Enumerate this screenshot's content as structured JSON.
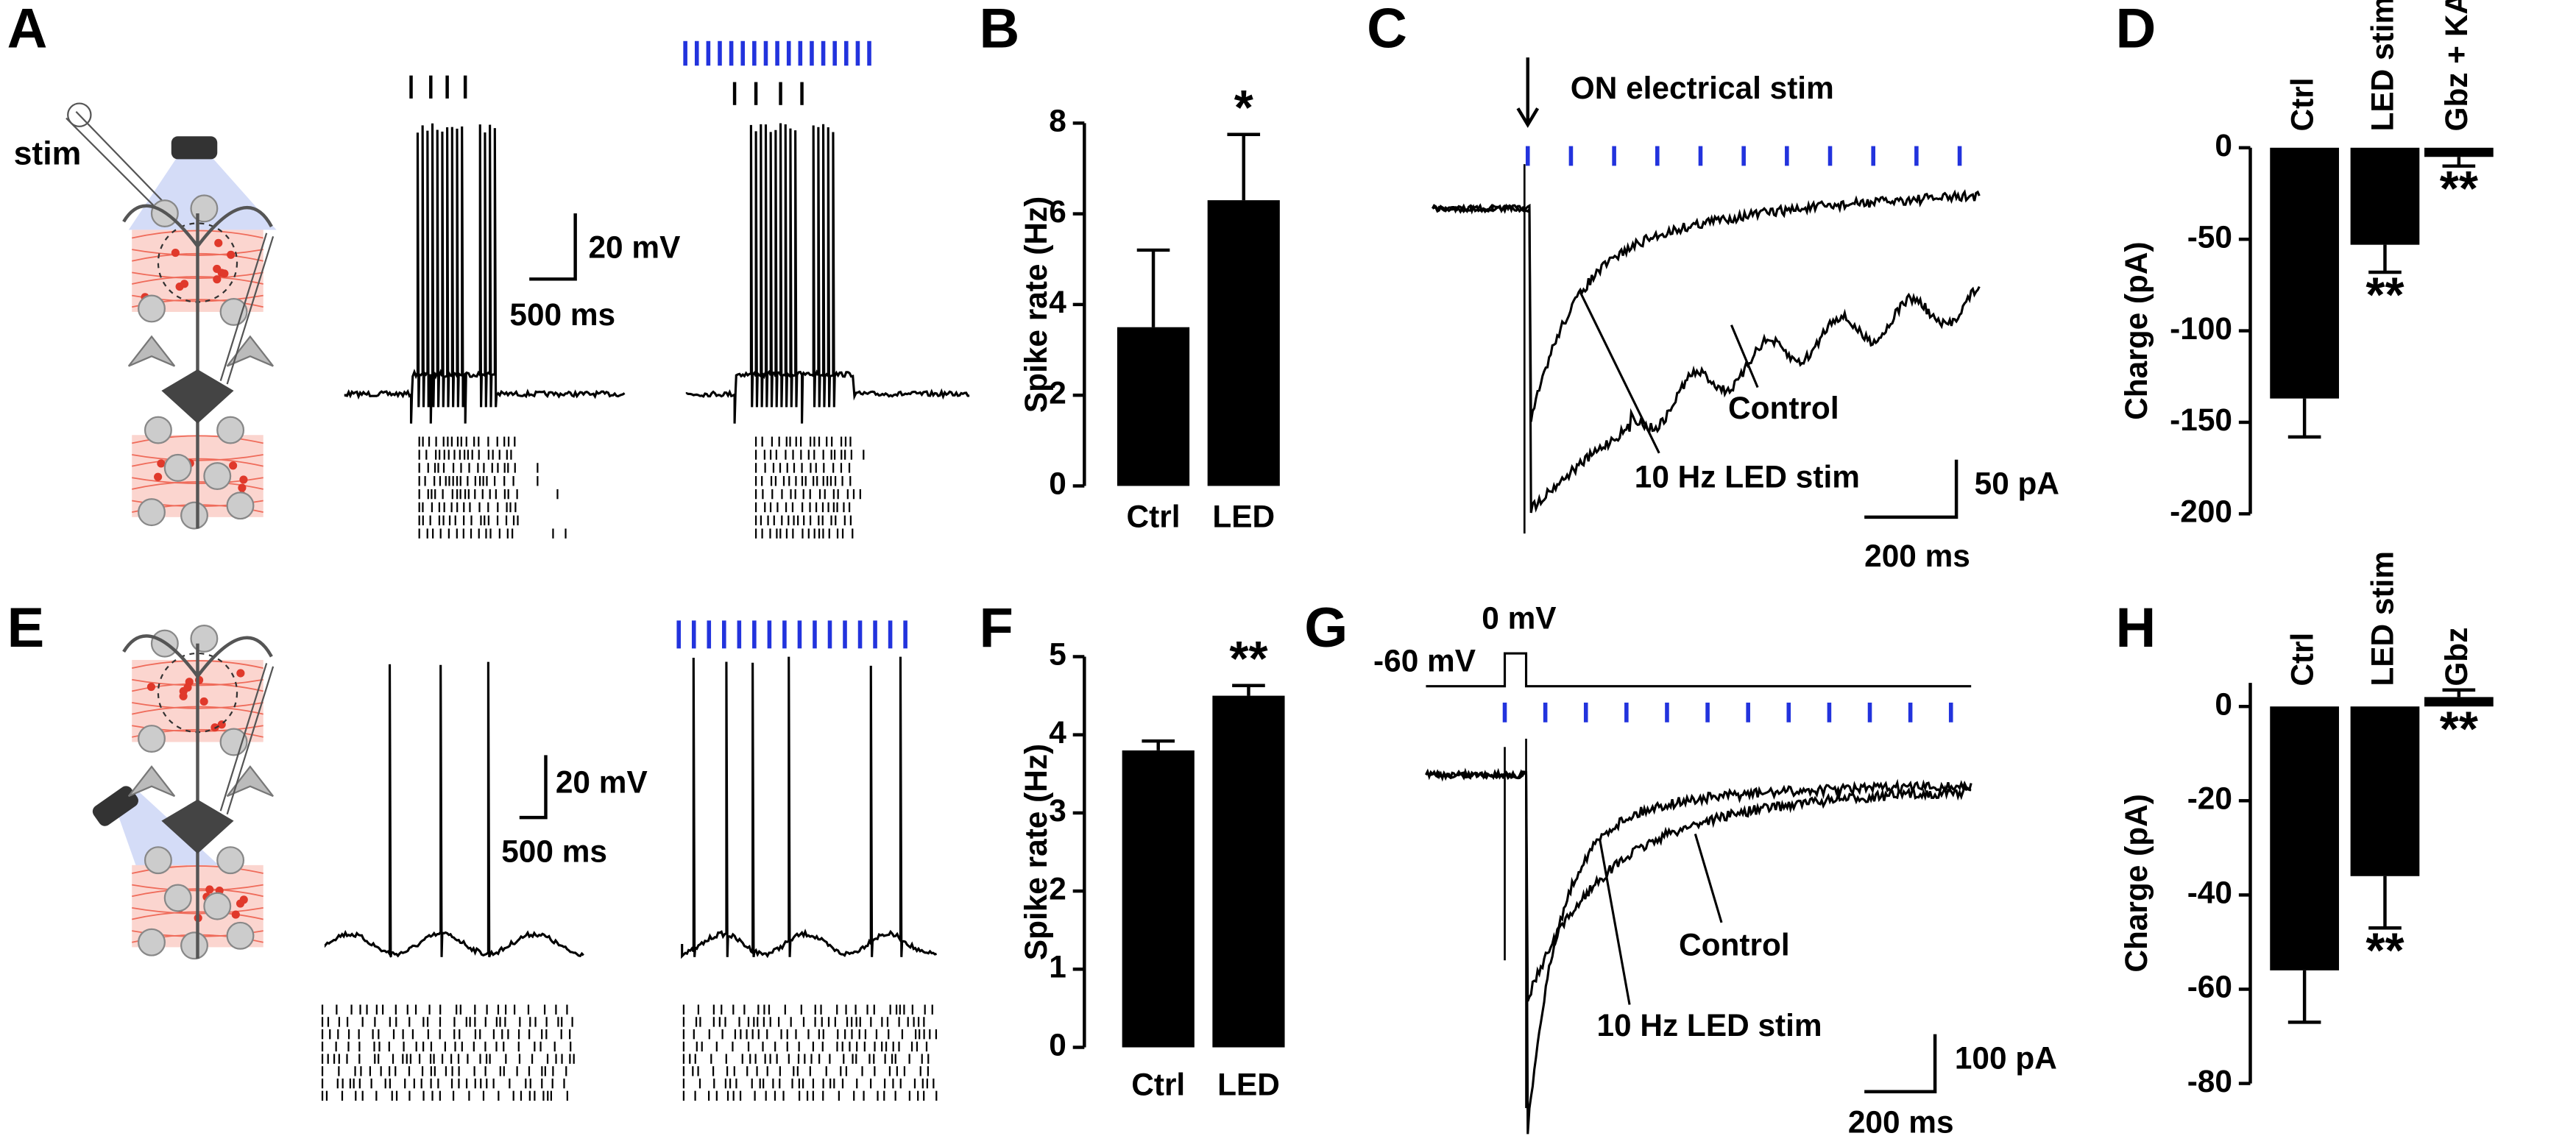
{
  "panel_labels": [
    "A",
    "B",
    "C",
    "D",
    "E",
    "F",
    "G",
    "H"
  ],
  "panel_a": {
    "stim_label": "stim",
    "scale_voltage": "20 mV",
    "scale_time": "500 ms"
  },
  "panel_c": {
    "arrow_label": "ON electrical stim",
    "trace_labels": [
      "Control",
      "10 Hz LED stim"
    ],
    "scale_current": "50 pA",
    "scale_time": "200 ms"
  },
  "panel_e": {
    "scale_voltage": "20 mV",
    "scale_time": "500 ms"
  },
  "panel_g": {
    "holding_label": "-60 mV",
    "step_label": "0 mV",
    "trace_labels": [
      "Control",
      "10 Hz LED stim"
    ],
    "scale_current": "100 pA",
    "scale_time": "200 ms"
  },
  "chart_data": [
    {
      "type": "bar",
      "ylabel": "Spike rate (Hz)",
      "categories": [
        "Ctrl",
        "LED"
      ],
      "values": [
        3.5,
        6.3
      ],
      "errors": [
        1.7,
        1.45
      ],
      "significance": [
        null,
        "*"
      ],
      "color": "#000000",
      "ylim": [
        0,
        8
      ],
      "yticks": [
        0,
        2,
        4,
        6,
        8
      ]
    },
    {
      "type": "bar",
      "ylabel": "Charge (pA)",
      "categories": [
        "Ctrl",
        "LED stim",
        "Gbz + KA"
      ],
      "values": [
        -137,
        -53,
        -5
      ],
      "errors": [
        21,
        15,
        5
      ],
      "significance": [
        null,
        "**",
        "**"
      ],
      "color": "#000000",
      "ylim": [
        -200,
        0
      ],
      "yticks": [
        0,
        -50,
        -100,
        -150,
        -200
      ]
    },
    {
      "type": "bar",
      "ylabel": "Spike rate (Hz)",
      "categories": [
        "Ctrl",
        "LED"
      ],
      "values": [
        3.8,
        4.5
      ],
      "errors": [
        0.12,
        0.13
      ],
      "significance": [
        null,
        "**"
      ],
      "color": "#000000",
      "ylim": [
        0,
        5
      ],
      "yticks": [
        0,
        1,
        2,
        3,
        4,
        5
      ]
    },
    {
      "type": "bar",
      "ylabel": "Charge (pA)",
      "categories": [
        "Ctrl",
        "LED stim",
        "Gbz"
      ],
      "values": [
        -56,
        -36,
        2
      ],
      "errors": [
        11,
        11,
        1.5
      ],
      "significance": [
        null,
        "**",
        "**"
      ],
      "color": "#000000",
      "ylim": [
        -80,
        5
      ],
      "yticks": [
        0,
        -20,
        -40,
        -60,
        -80
      ]
    }
  ]
}
